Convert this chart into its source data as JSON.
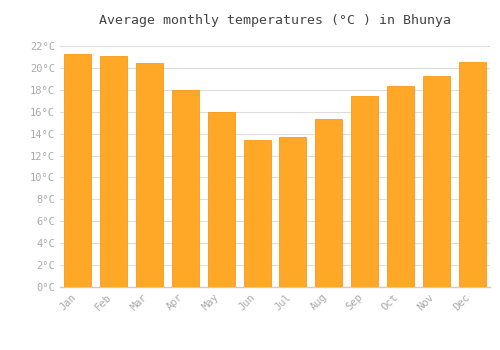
{
  "title": "Average monthly temperatures (°C ) in Bhunya",
  "months": [
    "Jan",
    "Feb",
    "Mar",
    "Apr",
    "May",
    "Jun",
    "Jul",
    "Aug",
    "Sep",
    "Oct",
    "Nov",
    "Dec"
  ],
  "values": [
    21.3,
    21.1,
    20.4,
    18.0,
    16.0,
    13.4,
    13.7,
    15.3,
    17.4,
    18.3,
    19.3,
    20.5
  ],
  "bar_color": "#FFA726",
  "bar_edge_color": "#FB8C00",
  "background_color": "#FFFFFF",
  "grid_color": "#dddddd",
  "tick_label_color": "#aaaaaa",
  "title_color": "#444444",
  "ylim": [
    0,
    23
  ],
  "yticks": [
    0,
    2,
    4,
    6,
    8,
    10,
    12,
    14,
    16,
    18,
    20,
    22
  ]
}
